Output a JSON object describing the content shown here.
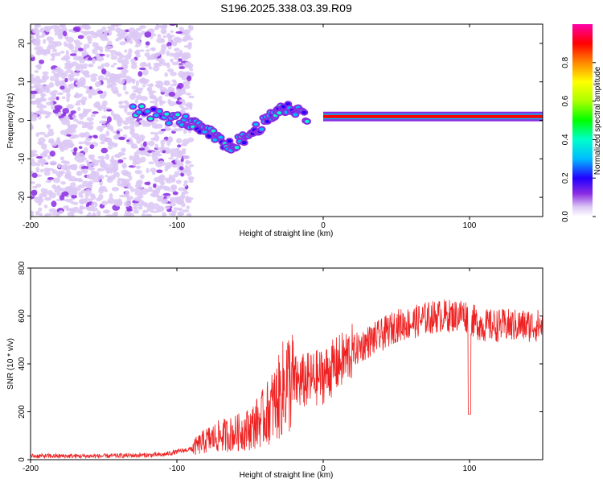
{
  "title": "S196.2025.338.03.39.R09",
  "chart_data": [
    {
      "type": "heatmap",
      "xlabel": "Height of straight line (km)",
      "ylabel": "Frequency (Hz)",
      "xlim": [
        -200,
        150
      ],
      "ylim": [
        -25,
        25
      ],
      "x_ticks": [
        -200,
        -100,
        0,
        100
      ],
      "y_ticks": [
        -20,
        -10,
        0,
        10,
        20
      ],
      "colorbar": {
        "label": "Normalized spectral amplitude",
        "range": [
          0,
          1
        ],
        "ticks": [
          0.0,
          0.2,
          0.4,
          0.6,
          0.8
        ]
      },
      "features": [
        {
          "description": "scattered noise blobs",
          "x_range": [
            -200,
            -100
          ],
          "freq_range": [
            -25,
            25
          ],
          "amplitude": 0.1
        },
        {
          "description": "wandering trace",
          "points": [
            [
              -130,
              3
            ],
            [
              -110,
              1
            ],
            [
              -95,
              0
            ],
            [
              -85,
              -2
            ],
            [
              -75,
              -4
            ],
            [
              -65,
              -7
            ],
            [
              -55,
              -5
            ],
            [
              -45,
              -2
            ],
            [
              -35,
              1
            ],
            [
              -30,
              3
            ],
            [
              -20,
              3
            ],
            [
              -10,
              1
            ]
          ],
          "amplitude": 0.35
        },
        {
          "description": "strong stable line",
          "x_range": [
            0,
            150
          ],
          "freq": 1,
          "amplitude": 0.95
        }
      ]
    },
    {
      "type": "line",
      "xlabel": "Height of straight line (km)",
      "ylabel": "SNR (10 * v/v)",
      "xlim": [
        -200,
        150
      ],
      "ylim": [
        0,
        800
      ],
      "x_ticks": [
        -200,
        -100,
        0,
        100
      ],
      "y_ticks": [
        0,
        200,
        400,
        600,
        800
      ],
      "series": [
        {
          "name": "SNR",
          "color": "#ee2222",
          "x": [
            -200,
            -150,
            -110,
            -90,
            -80,
            -70,
            -60,
            -50,
            -40,
            -30,
            -25,
            -20,
            -10,
            0,
            10,
            20,
            30,
            40,
            50,
            60,
            70,
            80,
            90,
            95,
            100,
            105,
            110,
            120,
            130,
            140,
            150
          ],
          "y": [
            15,
            15,
            20,
            45,
            80,
            100,
            110,
            130,
            180,
            260,
            330,
            320,
            330,
            350,
            400,
            450,
            490,
            520,
            560,
            570,
            590,
            600,
            600,
            610,
            590,
            570,
            560,
            560,
            560,
            560,
            560
          ]
        }
      ]
    }
  ]
}
